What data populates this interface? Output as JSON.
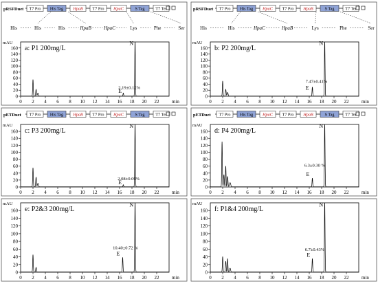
{
  "figure": {
    "panels": [
      {
        "id": "a",
        "construct": {
          "plasmid": "pRSFDuet",
          "parts": [
            {
              "text": "T7 Pro",
              "kind": "promoter"
            },
            {
              "text": "His Tag",
              "kind": "tag"
            },
            {
              "text": "HpaB",
              "kind": "gene"
            },
            {
              "text": "T7 Pro",
              "kind": "promoter"
            },
            {
              "text": "HpaC",
              "kind": "gene"
            },
            {
              "text": "S Tag",
              "kind": "tag"
            },
            {
              "text": "T7 Ter",
              "kind": "terminator"
            }
          ],
          "fusion": [
            "His",
            "His",
            "His",
            "HpaB",
            "HpaC",
            "Lys",
            "Phe",
            "Ser"
          ]
        },
        "chart_data": {
          "type": "line",
          "title": "a: P1  200mg/L",
          "ylabel": "mAU",
          "xlabel": "min",
          "xlim": [
            0,
            24
          ],
          "ylim": [
            0,
            180
          ],
          "xticks": [
            0,
            2,
            4,
            6,
            8,
            10,
            12,
            14,
            16,
            18,
            20,
            22
          ],
          "yticks": [
            0,
            20,
            40,
            60,
            80,
            100,
            120,
            140,
            160
          ],
          "peaks": [
            [
              2.0,
              55,
              0.05
            ],
            [
              2.5,
              22,
              0.06
            ],
            [
              2.8,
              10,
              0.08
            ],
            [
              16.6,
              10,
              0.05
            ],
            [
              18.5,
              185,
              0.05
            ]
          ],
          "annotations": [
            {
              "text": "2.19±0.12%",
              "x": 15.8,
              "y": 24
            },
            {
              "text": "E",
              "x": 15.8,
              "y": 11
            },
            {
              "text": "N",
              "x": 17.6,
              "y": 170
            }
          ]
        }
      },
      {
        "id": "b",
        "construct": {
          "plasmid": "pRSFDuet",
          "parts": [
            {
              "text": "T7 Pro",
              "kind": "promoter"
            },
            {
              "text": "His Tag",
              "kind": "tag"
            },
            {
              "text": "HpaC",
              "kind": "gene"
            },
            {
              "text": "T7 Pro",
              "kind": "promoter"
            },
            {
              "text": "HpaB",
              "kind": "gene"
            },
            {
              "text": "S Tag",
              "kind": "tag"
            },
            {
              "text": "T7 Ter",
              "kind": "terminator"
            }
          ],
          "fusion": [
            "His",
            "His",
            "HpaC",
            "HpaB",
            "Lys",
            "Phe",
            "Ser"
          ]
        },
        "chart_data": {
          "type": "line",
          "title": "b: P2  200mg/L",
          "ylabel": "mAU",
          "xlabel": "min",
          "xlim": [
            0,
            24
          ],
          "ylim": [
            0,
            180
          ],
          "xticks": [
            0,
            2,
            4,
            6,
            8,
            10,
            12,
            14,
            16,
            18,
            20,
            22
          ],
          "yticks": [
            0,
            20,
            40,
            60,
            80,
            100,
            120,
            140,
            160
          ],
          "peaks": [
            [
              2.0,
              50,
              0.05
            ],
            [
              2.5,
              22,
              0.06
            ],
            [
              2.8,
              12,
              0.08
            ],
            [
              16.5,
              30,
              0.05
            ],
            [
              18.5,
              185,
              0.05
            ]
          ],
          "annotations": [
            {
              "text": "7.47±0.41%",
              "x": 15.4,
              "y": 44
            },
            {
              "text": "E",
              "x": 15.4,
              "y": 22
            },
            {
              "text": "N",
              "x": 17.6,
              "y": 170
            }
          ]
        }
      },
      {
        "id": "c",
        "construct": {
          "plasmid": "pETDuet",
          "parts": [
            {
              "text": "T7 Pro",
              "kind": "promoter"
            },
            {
              "text": "His Tag",
              "kind": "tag"
            },
            {
              "text": "HpaB",
              "kind": "gene"
            },
            {
              "text": "T7 Pro",
              "kind": "promoter"
            },
            {
              "text": "HpaC",
              "kind": "gene"
            },
            {
              "text": "S Tag",
              "kind": "tag"
            },
            {
              "text": "T7 Ter",
              "kind": "terminator"
            }
          ],
          "fusion": []
        },
        "chart_data": {
          "type": "line",
          "title": "c: P3  200mg/L",
          "ylabel": "mAU",
          "xlabel": "min",
          "xlim": [
            0,
            24
          ],
          "ylim": [
            0,
            180
          ],
          "xticks": [
            0,
            2,
            4,
            6,
            8,
            10,
            12,
            14,
            16,
            18,
            20,
            22
          ],
          "yticks": [
            0,
            20,
            40,
            60,
            80,
            100,
            120,
            140,
            160
          ],
          "peaks": [
            [
              2.0,
              55,
              0.05
            ],
            [
              2.5,
              28,
              0.06
            ],
            [
              2.8,
              10,
              0.08
            ],
            [
              16.6,
              6,
              0.05
            ],
            [
              18.5,
              185,
              0.05
            ]
          ],
          "annotations": [
            {
              "text": "2.08±0.09%",
              "x": 15.7,
              "y": 20
            },
            {
              "text": "E",
              "x": 15.8,
              "y": 8
            },
            {
              "text": "N",
              "x": 17.6,
              "y": 170
            }
          ]
        }
      },
      {
        "id": "d",
        "construct": {
          "plasmid": "pETDuet",
          "parts": [
            {
              "text": "T7 Pro",
              "kind": "promoter"
            },
            {
              "text": "His Tag",
              "kind": "tag"
            },
            {
              "text": "HpaC",
              "kind": "gene"
            },
            {
              "text": "T7 Pro",
              "kind": "promoter"
            },
            {
              "text": "HpaB",
              "kind": "gene"
            },
            {
              "text": "S Tag",
              "kind": "tag"
            },
            {
              "text": "T7 Ter",
              "kind": "terminator"
            }
          ],
          "fusion": []
        },
        "chart_data": {
          "type": "line",
          "title": "d: P4  200mg/L",
          "ylabel": "mAU",
          "xlabel": "min",
          "xlim": [
            0,
            24
          ],
          "ylim": [
            0,
            180
          ],
          "xticks": [
            0,
            2,
            4,
            6,
            8,
            10,
            12,
            14,
            16,
            18,
            20,
            22
          ],
          "yticks": [
            0,
            20,
            40,
            60,
            80,
            100,
            120,
            140,
            160
          ],
          "peaks": [
            [
              1.9,
              130,
              0.05
            ],
            [
              2.2,
              35,
              0.06
            ],
            [
              2.5,
              60,
              0.05
            ],
            [
              2.8,
              30,
              0.06
            ],
            [
              3.2,
              12,
              0.1
            ],
            [
              16.5,
              25,
              0.05
            ],
            [
              18.5,
              185,
              0.05
            ]
          ],
          "annotations": [
            {
              "text": "6.3±0.30 %",
              "x": 15.2,
              "y": 58
            },
            {
              "text": "E",
              "x": 15.5,
              "y": 32
            },
            {
              "text": "N",
              "x": 17.6,
              "y": 170
            }
          ]
        }
      },
      {
        "id": "e",
        "construct": null,
        "chart_data": {
          "type": "line",
          "title": "e: P2&3  200mg/L",
          "ylabel": "mAU",
          "xlabel": "min",
          "xlim": [
            0,
            24
          ],
          "ylim": [
            0,
            180
          ],
          "xticks": [
            0,
            2,
            4,
            6,
            8,
            10,
            12,
            14,
            16,
            18,
            20,
            22
          ],
          "yticks": [
            0,
            20,
            40,
            60,
            80,
            100,
            120,
            140,
            160
          ],
          "peaks": [
            [
              2.0,
              45,
              0.05
            ],
            [
              2.5,
              12,
              0.06
            ],
            [
              16.5,
              38,
              0.05
            ],
            [
              18.5,
              185,
              0.05
            ]
          ],
          "annotations": [
            {
              "text": "10.40±0.72 %",
              "x": 14.9,
              "y": 60
            },
            {
              "text": "E",
              "x": 15.5,
              "y": 44
            },
            {
              "text": "N",
              "x": 17.6,
              "y": 170
            }
          ]
        }
      },
      {
        "id": "f",
        "construct": null,
        "chart_data": {
          "type": "line",
          "title": "f: P1&4  200mg/L",
          "ylabel": "mAU",
          "xlabel": "min",
          "xlim": [
            0,
            24
          ],
          "ylim": [
            0,
            180
          ],
          "xticks": [
            0,
            2,
            4,
            6,
            8,
            10,
            12,
            14,
            16,
            18,
            20,
            22
          ],
          "yticks": [
            0,
            20,
            40,
            60,
            80,
            100,
            120,
            140,
            160
          ],
          "peaks": [
            [
              2.0,
              40,
              0.05
            ],
            [
              2.5,
              28,
              0.06
            ],
            [
              2.8,
              35,
              0.05
            ],
            [
              3.2,
              10,
              0.08
            ],
            [
              16.5,
              35,
              0.05
            ],
            [
              18.5,
              185,
              0.05
            ]
          ],
          "annotations": [
            {
              "text": "6.7±0.43%",
              "x": 15.3,
              "y": 55
            },
            {
              "text": "E",
              "x": 15.6,
              "y": 40
            },
            {
              "text": "N",
              "x": 17.6,
              "y": 170
            }
          ]
        }
      }
    ],
    "colors": {
      "line": "#000000",
      "tag_fill": "#8fa3d6",
      "gene_text": "#c01818",
      "box_border": "#333333"
    }
  }
}
